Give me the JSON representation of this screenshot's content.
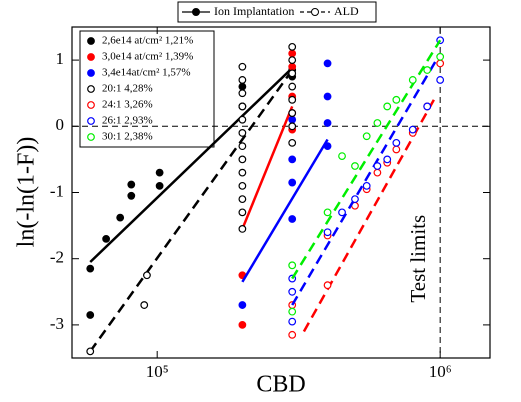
{
  "chart_data": {
    "type": "scatter",
    "x_label": "CBD",
    "y_label": "ln(-ln(1-F))",
    "annotation": "Test limits",
    "xlim": [
      50000,
      1500000
    ],
    "ylim": [
      -3.5,
      1.5
    ],
    "xlog": true,
    "xticks": [
      {
        "value": 100000,
        "label": "10⁵"
      },
      {
        "value": 1000000,
        "label": "10⁶"
      }
    ],
    "yticks": [
      1,
      0,
      -1,
      -2,
      -3
    ],
    "reference_lines": {
      "y": 0,
      "x": 1000000
    },
    "groups": [
      {
        "name": "Ion Implantation",
        "filled": true,
        "dashed": false
      },
      {
        "name": "ALD",
        "filled": false,
        "dashed": true
      }
    ],
    "series": [
      {
        "name": "2,6e14 at/cm² 1,21%",
        "color": "#000000",
        "group": 0,
        "x": [
          58000,
          58000,
          66000,
          74000,
          81000,
          81000,
          102000,
          102000,
          200000,
          200000,
          300000,
          300000
        ],
        "y": [
          -2.85,
          -2.15,
          -1.7,
          -1.38,
          -1.05,
          -0.88,
          -0.9,
          -0.7,
          0.3,
          0.6,
          0.75,
          0.85
        ],
        "fit_x": [
          58000,
          300000
        ],
        "fit_y": [
          -2.05,
          0.88
        ]
      },
      {
        "name": "3,0e14 at/cm² 1,39%",
        "color": "#ff0000",
        "group": 0,
        "x": [
          200000,
          200000,
          300000,
          300000,
          300000,
          300000,
          300000
        ],
        "y": [
          -3.0,
          -2.25,
          -0.05,
          0.2,
          0.45,
          0.9,
          1.1
        ],
        "fit_x": [
          200000,
          300000
        ],
        "fit_y": [
          -1.55,
          0.3
        ]
      },
      {
        "name": "3,4e14at/cm² 1,57%",
        "color": "#0000ff",
        "group": 0,
        "x": [
          200000,
          300000,
          300000,
          300000,
          300000,
          400000,
          400000,
          400000,
          400000
        ],
        "y": [
          -2.7,
          -1.4,
          -0.85,
          -0.5,
          0.1,
          -0.3,
          0.05,
          0.45,
          0.95
        ],
        "fit_x": [
          200000,
          400000
        ],
        "fit_y": [
          -2.35,
          -0.2
        ]
      },
      {
        "name": "20:1 4,28%",
        "color": "#000000",
        "group": 1,
        "x": [
          58000,
          90000,
          92000,
          200000,
          200000,
          200000,
          200000,
          200000,
          200000,
          200000,
          200000,
          200000,
          200000,
          200000,
          200000,
          200000,
          300000,
          300000,
          300000,
          300000,
          300000,
          300000,
          300000,
          300000
        ],
        "y": [
          -3.4,
          -2.7,
          -2.25,
          -1.55,
          -1.3,
          -1.1,
          -0.9,
          -0.7,
          -0.5,
          -0.3,
          -0.1,
          0.1,
          0.3,
          0.5,
          0.7,
          0.9,
          -0.25,
          0,
          0.2,
          0.4,
          0.6,
          0.8,
          1.0,
          1.2
        ],
        "fit_x": [
          58000,
          300000
        ],
        "fit_y": [
          -3.4,
          0.85
        ]
      },
      {
        "name": "24:1 3,26%",
        "color": "#ff0000",
        "group": 1,
        "x": [
          300000,
          300000,
          400000,
          400000,
          500000,
          550000,
          600000,
          650000,
          700000,
          800000,
          900000,
          1000000
        ],
        "y": [
          -3.15,
          -2.7,
          -2.4,
          -1.65,
          -1.2,
          -0.95,
          -0.7,
          -0.55,
          -0.35,
          -0.1,
          0.3,
          0.95
        ],
        "fit_x": [
          330000,
          950000
        ],
        "fit_y": [
          -3.1,
          0.4
        ]
      },
      {
        "name": "26:1 2,93%",
        "color": "#0000ff",
        "group": 1,
        "x": [
          300000,
          300000,
          300000,
          400000,
          450000,
          500000,
          550000,
          600000,
          650000,
          700000,
          800000,
          900000,
          1000000,
          1000000
        ],
        "y": [
          -2.95,
          -2.5,
          -2.3,
          -1.6,
          -1.3,
          -1.1,
          -0.9,
          -0.6,
          -0.5,
          -0.25,
          -0.05,
          0.3,
          0.7,
          1.3
        ],
        "fit_x": [
          300000,
          1000000
        ],
        "fit_y": [
          -2.7,
          1.1
        ]
      },
      {
        "name": "30:1 2,38%",
        "color": "#00ee00",
        "group": 1,
        "x": [
          300000,
          300000,
          400000,
          450000,
          500000,
          550000,
          600000,
          650000,
          700000,
          800000,
          900000,
          1000000
        ],
        "y": [
          -2.8,
          -2.1,
          -1.3,
          -0.45,
          -0.6,
          -0.15,
          0.05,
          0.3,
          0.4,
          0.7,
          0.85,
          1.05
        ],
        "fit_x": [
          300000,
          1000000
        ],
        "fit_y": [
          -2.3,
          1.3
        ]
      }
    ]
  }
}
